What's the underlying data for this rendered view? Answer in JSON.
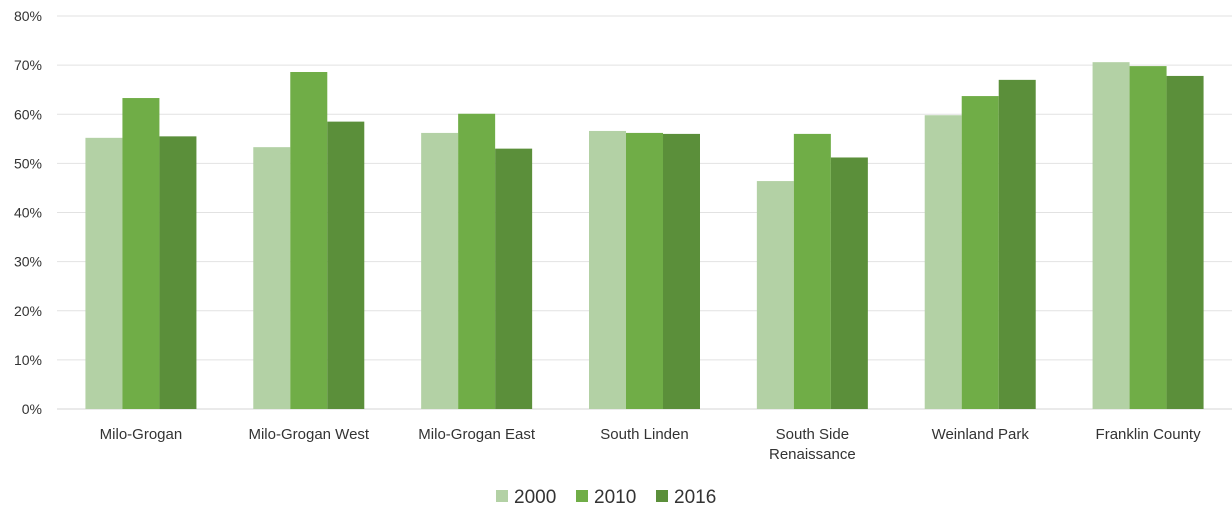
{
  "chart_data": {
    "type": "bar",
    "title": "",
    "xlabel": "",
    "ylabel": "",
    "ylim": [
      0,
      80
    ],
    "y_ticks": [
      "0%",
      "10%",
      "20%",
      "30%",
      "40%",
      "50%",
      "60%",
      "70%",
      "80%"
    ],
    "y_tick_values": [
      0,
      10,
      20,
      30,
      40,
      50,
      60,
      70,
      80
    ],
    "grid": true,
    "legend_position": "bottom",
    "categories": [
      [
        "Milo-Grogan"
      ],
      [
        "Milo-Grogan West"
      ],
      [
        "Milo-Grogan East"
      ],
      [
        "South Linden"
      ],
      [
        "South Side",
        "Renaissance"
      ],
      [
        "Weinland Park"
      ],
      [
        "Franklin County"
      ]
    ],
    "series": [
      {
        "name": "2000",
        "color": "#b3d1a5",
        "values": [
          55.2,
          53.3,
          56.2,
          56.6,
          46.4,
          59.8,
          70.6
        ]
      },
      {
        "name": "2010",
        "color": "#70ad47",
        "values": [
          63.3,
          68.6,
          60.1,
          56.2,
          56.0,
          63.7,
          69.8
        ]
      },
      {
        "name": "2016",
        "color": "#5b8f3a",
        "values": [
          55.5,
          58.5,
          53.0,
          56.0,
          51.2,
          67.0,
          67.8
        ]
      }
    ]
  }
}
